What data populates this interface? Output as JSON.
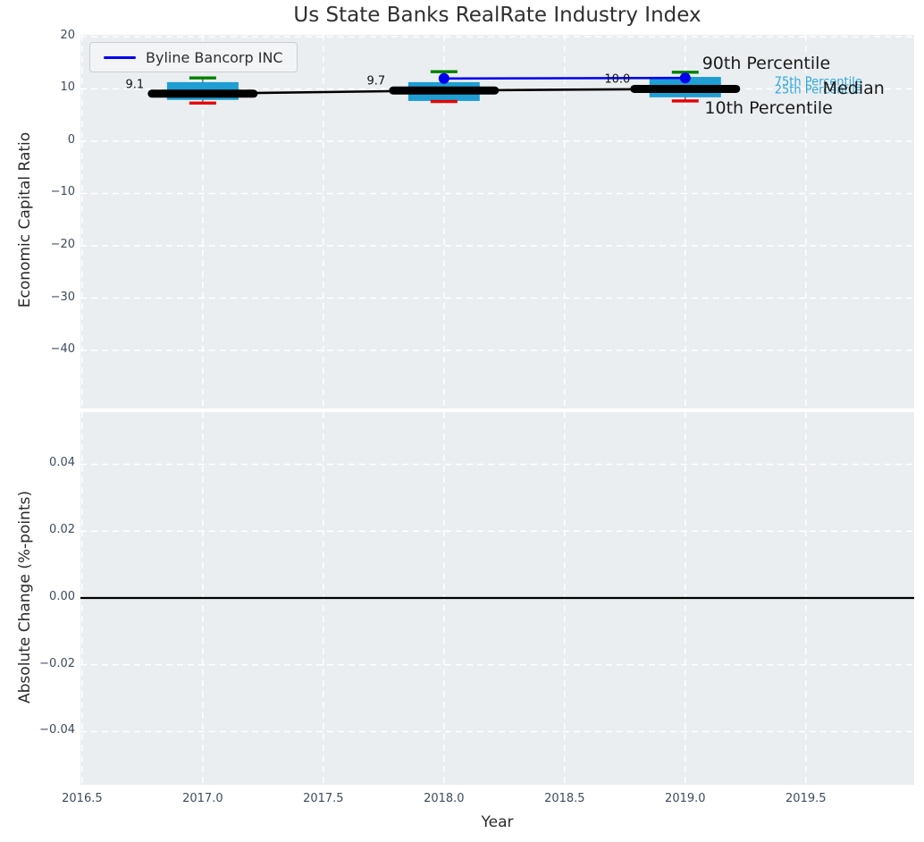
{
  "colors": {
    "axes_background": "#eaeef1",
    "grid": "#ffffff",
    "box_fill": "#1f9ed3",
    "whisker_line": "#444444",
    "cap_high": "#008000",
    "cap_low": "#e80000",
    "median_line": "#000000",
    "company_line": "#0000ee",
    "annotation_accent": "#2fa7d9",
    "annotation_dark": "#1a1a1a",
    "zero_line": "#000000",
    "tick_text": "#3d4c5c"
  },
  "chart_data": [
    {
      "type": "boxplot+line",
      "title": "Us State Banks RealRate Industry Index",
      "xlabel": "Year",
      "ylabel": "Economic Capital Ratio",
      "xlim": [
        2016.493,
        2019.949
      ],
      "ylim": [
        -51.11,
        20.34
      ],
      "xtick_values": [
        2016.5,
        2017.0,
        2017.5,
        2018.0,
        2018.5,
        2019.0,
        2019.5
      ],
      "xticks": [
        "2016.5",
        "2017.0",
        "2017.5",
        "2018.0",
        "2018.5",
        "2019.0",
        "2019.5"
      ],
      "ytick_values": [
        20,
        10,
        0,
        -10,
        -20,
        -30,
        -40
      ],
      "yticks": [
        "20",
        "10",
        "0",
        "−10",
        "−20",
        "−30",
        "−40"
      ],
      "grid": "white dashed, on",
      "legend": {
        "position": "upper left",
        "entries": [
          {
            "label": "Byline Bancorp INC",
            "color": "#0000ee",
            "marker": "line"
          }
        ]
      },
      "boxes": [
        {
          "x": 2017,
          "median": 9.1,
          "q1": 7.9,
          "q3": 11.3,
          "whisker_low": 7.3,
          "whisker_high": 12.1,
          "label": "9.1"
        },
        {
          "x": 2018,
          "median": 9.7,
          "q1": 7.7,
          "q3": 11.3,
          "whisker_low": 7.6,
          "whisker_high": 13.3,
          "label": "9.7"
        },
        {
          "x": 2019,
          "median": 10.0,
          "q1": 8.4,
          "q3": 12.3,
          "whisker_low": 7.7,
          "whisker_high": 13.2,
          "label": "10.0"
        }
      ],
      "series": [
        {
          "name": "Byline Bancorp INC",
          "x": [
            2018,
            2019
          ],
          "y": [
            12.0,
            12.1
          ],
          "color": "#0000ee",
          "marker": "circle"
        }
      ],
      "annotations": [
        {
          "text": "90th Percentile",
          "x": 2019.07,
          "y": 14.9,
          "color": "#1a1a1a",
          "size": 19
        },
        {
          "text": "75th Percentile",
          "x": 2019.37,
          "y": 11.3,
          "color": "#2fa7d9",
          "size": 13
        },
        {
          "text": "25th Percentile",
          "x": 2019.37,
          "y": 9.7,
          "color": "#2fa7d9",
          "size": 13
        },
        {
          "text": "Median",
          "x": 2019.57,
          "y": 10.1,
          "color": "#1a1a1a",
          "size": 19
        },
        {
          "text": "10th Percentile",
          "x": 2019.08,
          "y": 6.3,
          "color": "#1a1a1a",
          "size": 19
        }
      ]
    },
    {
      "type": "line",
      "xlabel": "Year",
      "ylabel": "Absolute Change (%-points)",
      "xlim": [
        2016.493,
        2019.949
      ],
      "ylim": [
        -0.05592,
        0.05565
      ],
      "ytick_values": [
        0.04,
        0.02,
        0.0,
        -0.02,
        -0.04
      ],
      "yticks": [
        "0.04",
        "0.02",
        "0.00",
        "−0.02",
        "−0.04"
      ],
      "grid": "white dashed, on",
      "zero_line": {
        "value": 0.0,
        "color": "#000000"
      },
      "series": []
    }
  ]
}
